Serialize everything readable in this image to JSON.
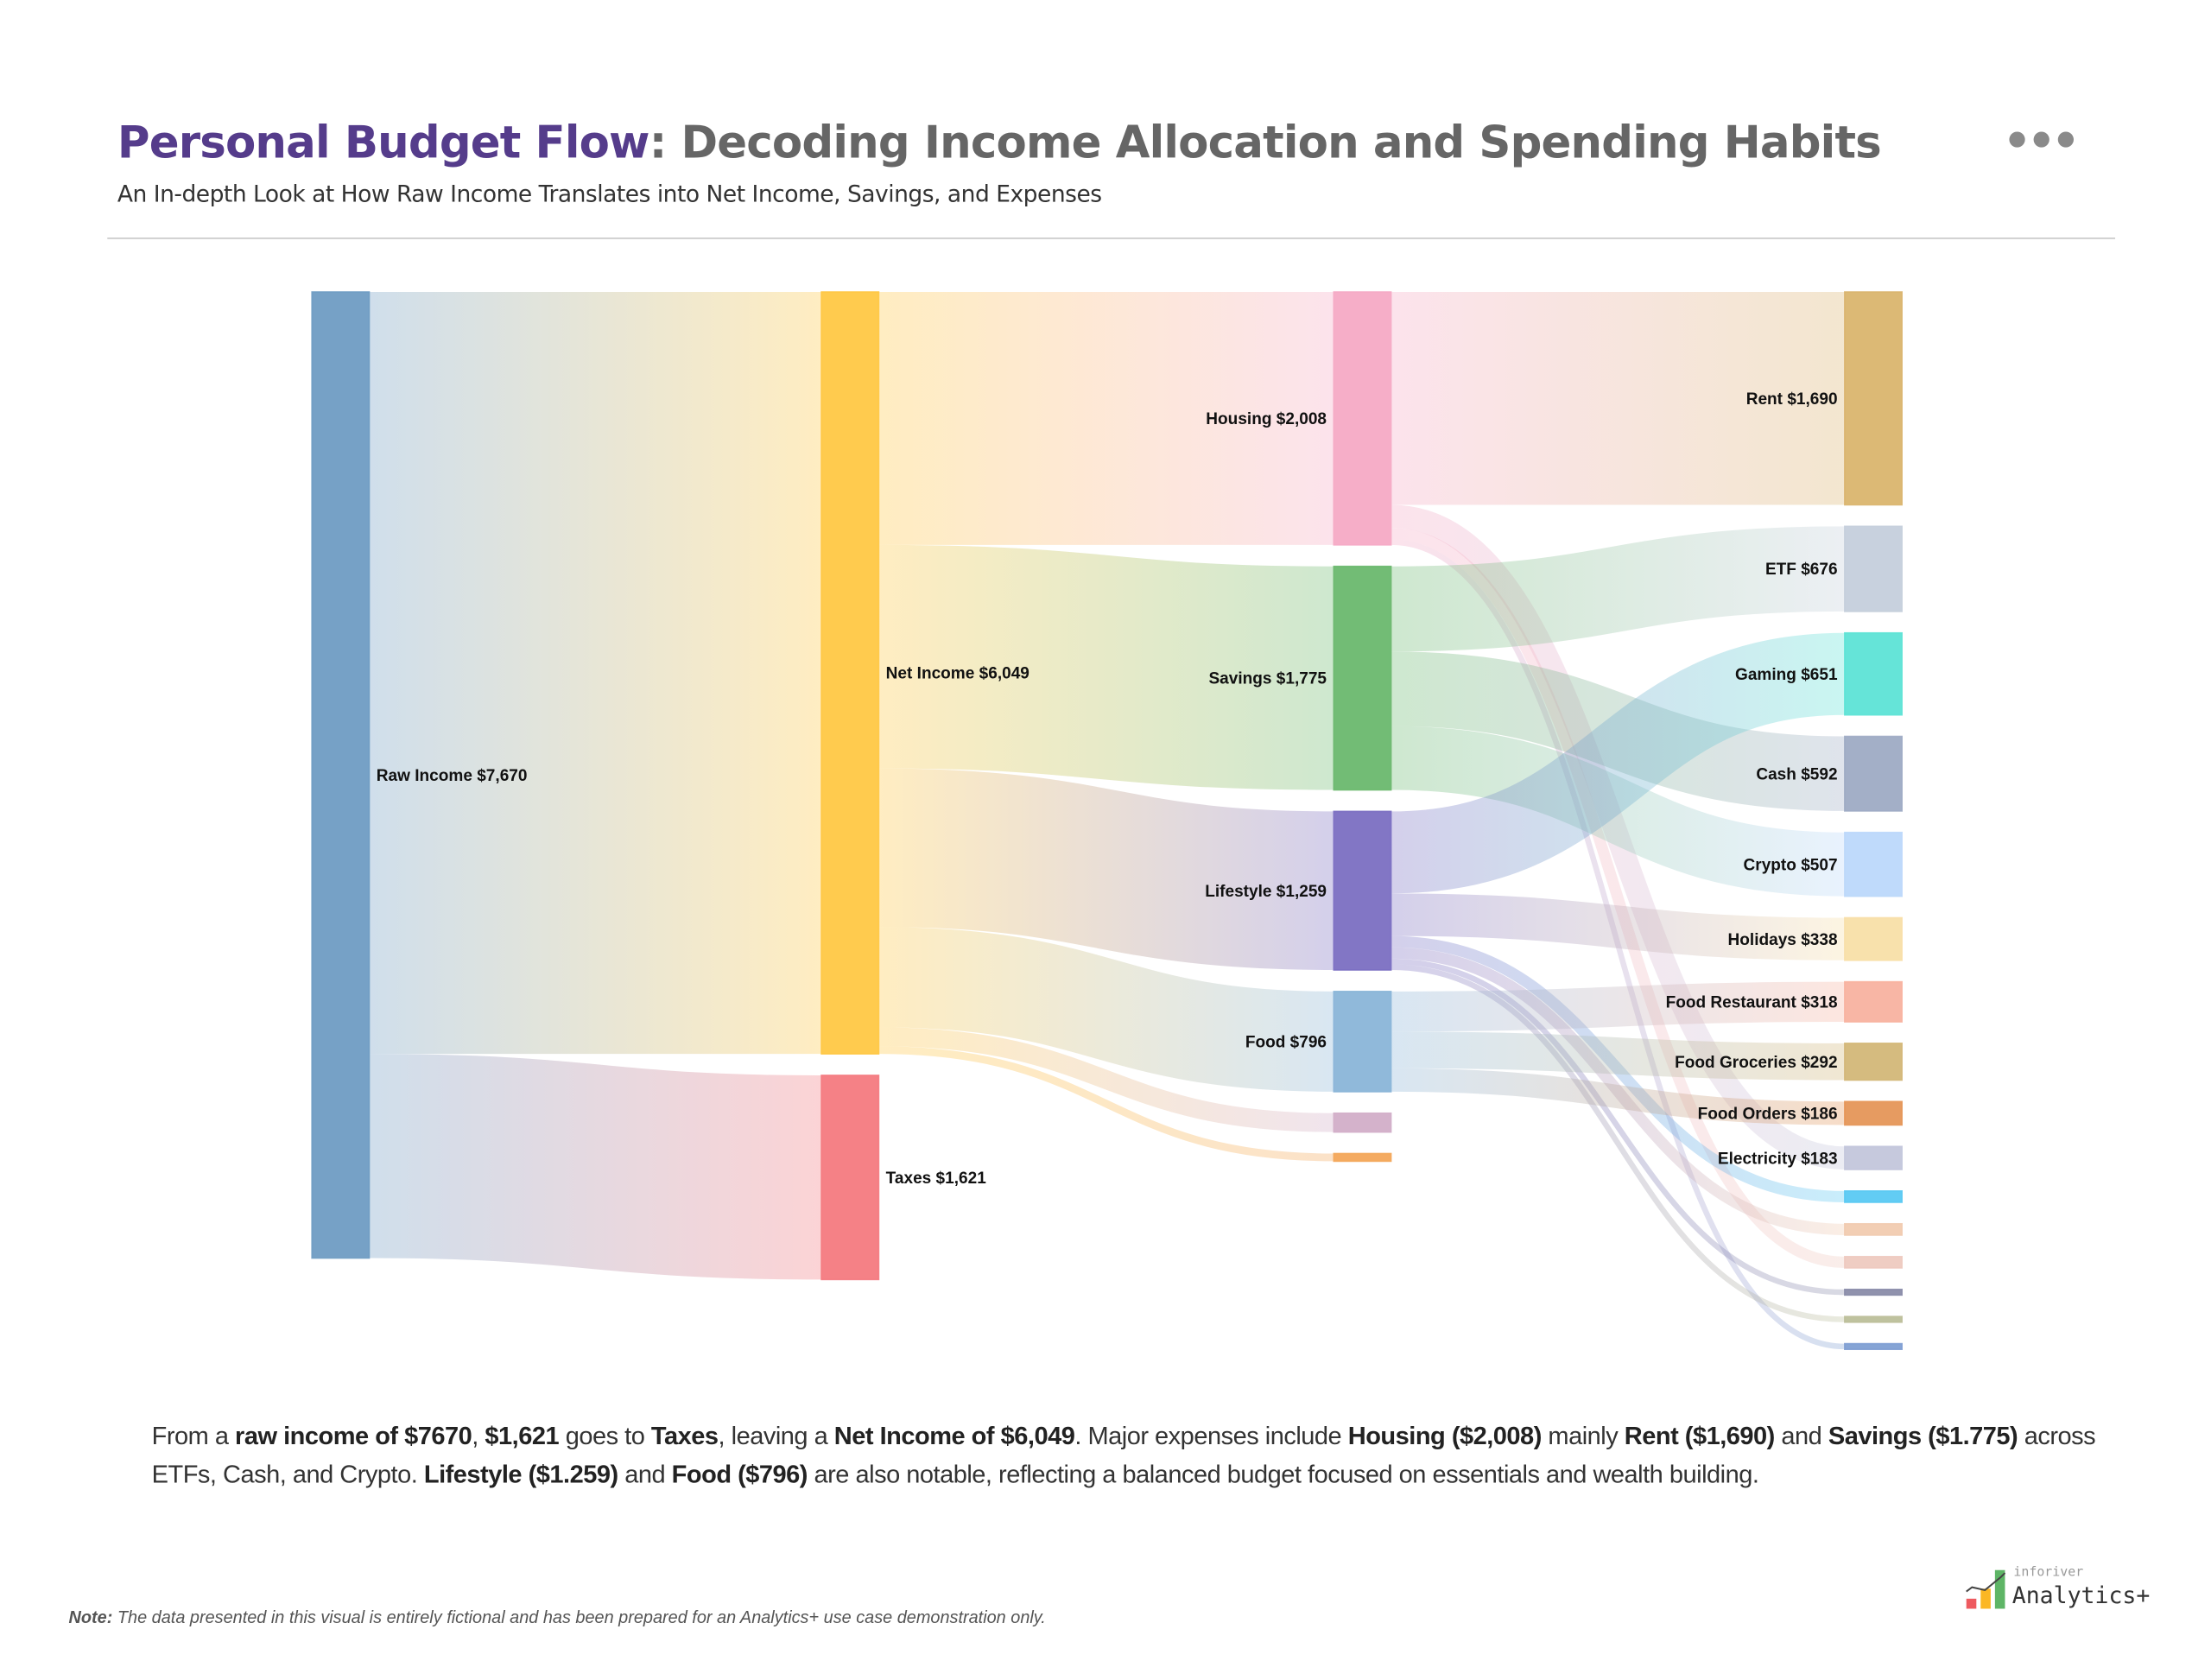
{
  "header": {
    "title_highlight": "Personal Budget Flow",
    "title_rest": ": Decoding Income Allocation and Spending Habits",
    "subtitle": "An In-depth Look at How Raw Income Translates into Net Income, Savings, and Expenses",
    "more_icon": "ellipsis-icon"
  },
  "chart_data": {
    "type": "sankey",
    "colors": {
      "title_highlight": "#553c8b"
    },
    "columns": [
      [
        {
          "id": "raw",
          "label": "Raw Income $7,670",
          "value": 7670,
          "color": "#6f9cc3"
        }
      ],
      [
        {
          "id": "net",
          "label": "Net Income $6,049",
          "value": 6049,
          "color": "#ffc844"
        },
        {
          "id": "tax",
          "label": "Taxes $1,621",
          "value": 1621,
          "color": "#f47a80"
        }
      ],
      [
        {
          "id": "housing",
          "label": "Housing $2,008",
          "value": 2008,
          "color": "#f5aac5"
        },
        {
          "id": "savings",
          "label": "Savings $1,775",
          "value": 1775,
          "color": "#6ab86e"
        },
        {
          "id": "lifestyle",
          "label": "Lifestyle $1,259",
          "value": 1259,
          "color": "#7b6fc2"
        },
        {
          "id": "food",
          "label": "Food $796",
          "value": 796,
          "color": "#8ab5d8"
        },
        {
          "id": "s1",
          "label": "",
          "value": 150,
          "color": "#d2aec8"
        },
        {
          "id": "s2",
          "label": "",
          "value": 61,
          "color": "#f3a75a"
        }
      ],
      [
        {
          "id": "rent",
          "label": "Rent $1,690",
          "value": 1690,
          "color": "#dab56e"
        },
        {
          "id": "etf",
          "label": "ETF $676",
          "value": 676,
          "color": "#c5cfdc"
        },
        {
          "id": "gaming",
          "label": "Gaming $651",
          "value": 651,
          "color": "#5de3d6"
        },
        {
          "id": "cash",
          "label": "Cash $592",
          "value": 592,
          "color": "#9eabc4"
        },
        {
          "id": "crypto",
          "label": "Crypto $507",
          "value": 507,
          "color": "#bcd8fb"
        },
        {
          "id": "holidays",
          "label": "Holidays $338",
          "value": 338,
          "color": "#f8dfa8"
        },
        {
          "id": "restaurant",
          "label": "Food Restaurant $318",
          "value": 318,
          "color": "#f8b2a0"
        },
        {
          "id": "groceries",
          "label": "Food Groceries $292",
          "value": 292,
          "color": "#d3b778"
        },
        {
          "id": "orders",
          "label": "Food Orders $186",
          "value": 186,
          "color": "#e59658"
        },
        {
          "id": "electricity",
          "label": "Electricity $183",
          "value": 183,
          "color": "#c3c6db"
        },
        {
          "id": "x1",
          "label": "",
          "value": 90,
          "color": "#5ac9f3"
        },
        {
          "id": "x2",
          "label": "",
          "value": 90,
          "color": "#f1cbb0"
        },
        {
          "id": "x3",
          "label": "",
          "value": 90,
          "color": "#eecac0"
        },
        {
          "id": "x4",
          "label": "",
          "value": 45,
          "color": "#8a8ca9"
        },
        {
          "id": "x5",
          "label": "",
          "value": 45,
          "color": "#bcbf9a"
        },
        {
          "id": "x6",
          "label": "",
          "value": 45,
          "color": "#7f9fd3"
        }
      ]
    ],
    "links": [
      [
        "raw",
        "net",
        6049
      ],
      [
        "raw",
        "tax",
        1621
      ],
      [
        "net",
        "housing",
        2008
      ],
      [
        "net",
        "savings",
        1775
      ],
      [
        "net",
        "lifestyle",
        1259
      ],
      [
        "net",
        "food",
        796
      ],
      [
        "net",
        "s1",
        150
      ],
      [
        "net",
        "s2",
        61
      ],
      [
        "housing",
        "rent",
        1690
      ],
      [
        "housing",
        "electricity",
        183
      ],
      [
        "housing",
        "x3",
        90
      ],
      [
        "housing",
        "x6",
        45
      ],
      [
        "savings",
        "etf",
        676
      ],
      [
        "savings",
        "cash",
        592
      ],
      [
        "savings",
        "crypto",
        507
      ],
      [
        "lifestyle",
        "gaming",
        651
      ],
      [
        "lifestyle",
        "holidays",
        338
      ],
      [
        "lifestyle",
        "x1",
        90
      ],
      [
        "lifestyle",
        "x2",
        90
      ],
      [
        "lifestyle",
        "x4",
        45
      ],
      [
        "lifestyle",
        "x5",
        45
      ],
      [
        "food",
        "restaurant",
        318
      ],
      [
        "food",
        "groceries",
        292
      ],
      [
        "food",
        "orders",
        186
      ]
    ]
  },
  "summary": {
    "segments": [
      {
        "t": "From a ",
        "b": false
      },
      {
        "t": "raw income of $7670",
        "b": true
      },
      {
        "t": ", ",
        "b": false
      },
      {
        "t": "$1,621",
        "b": true
      },
      {
        "t": " goes to ",
        "b": false
      },
      {
        "t": "Taxes",
        "b": true
      },
      {
        "t": ", leaving a ",
        "b": false
      },
      {
        "t": "Net Income of $6,049",
        "b": true
      },
      {
        "t": ". Major expenses include ",
        "b": false
      },
      {
        "t": "Housing ($2,008)",
        "b": true
      },
      {
        "t": " mainly ",
        "b": false
      },
      {
        "t": "Rent ($1,690)",
        "b": true
      },
      {
        "t": " and ",
        "b": false
      },
      {
        "t": "Savings ($1.775)",
        "b": true
      },
      {
        "t": " across ETFs, Cash, and Crypto. ",
        "b": false
      },
      {
        "t": "Lifestyle ($1.259)",
        "b": true
      },
      {
        "t": " and ",
        "b": false
      },
      {
        "t": "Food ($796)",
        "b": true
      },
      {
        "t": " are also notable, reflecting a balanced budget focused on essentials and wealth building.",
        "b": false
      }
    ]
  },
  "footer": {
    "note_label": "Note:",
    "note_text": " The data presented in this visual is entirely fictional and has been prepared for an Analytics+ use case demonstration only.",
    "logo_sub": "inforiver",
    "logo_main": "Analytics+"
  }
}
